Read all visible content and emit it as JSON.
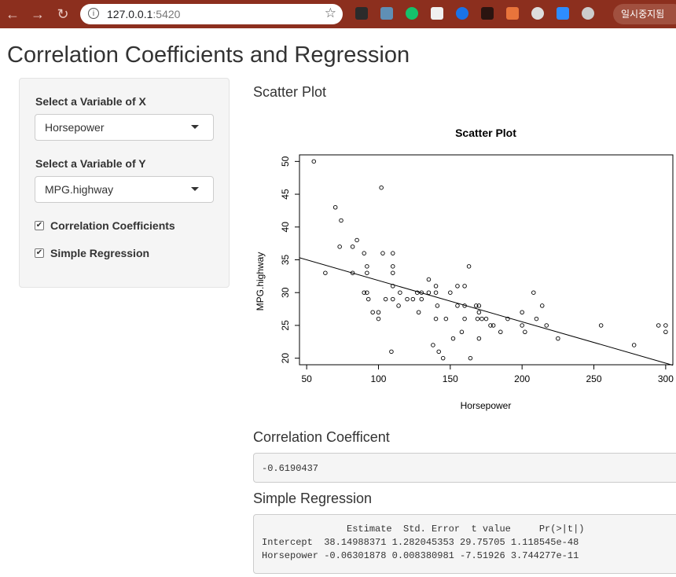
{
  "browser": {
    "url_host": "127.0.0.1",
    "url_port": ":5420",
    "profile_label": "일시중지됨"
  },
  "app": {
    "title": "Correlation Coefficients and Regression"
  },
  "sidebar": {
    "x_label": "Select a Variable of X",
    "x_value": "Horsepower",
    "y_label": "Select a Variable of Y",
    "y_value": "MPG.highway",
    "checkboxes": [
      {
        "label": "Correlation Coefficients",
        "checked": true
      },
      {
        "label": "Simple Regression",
        "checked": true
      }
    ]
  },
  "main": {
    "scatter_heading": "Scatter Plot",
    "corr_heading": "Correlation Coefficent",
    "corr_value": "-0.6190437",
    "reg_heading": "Simple Regression",
    "reg_lines": [
      "               Estimate  Std. Error  t value     Pr(>|t|)",
      "Intercept  38.14988371 1.282045353 29.75705 1.118545e-48",
      "Horsepower -0.06301878 0.008380981 -7.51926 3.744277e-11"
    ]
  },
  "chart_data": {
    "type": "scatter",
    "title": "Scatter Plot",
    "xlabel": "Horsepower",
    "ylabel": "MPG.highway",
    "xlim": [
      45,
      305
    ],
    "ylim": [
      19,
      51
    ],
    "xticks": [
      50,
      100,
      150,
      200,
      250,
      300
    ],
    "yticks": [
      20,
      25,
      30,
      35,
      40,
      45,
      50
    ],
    "grid": false,
    "regression_line": {
      "intercept": 38.14988371,
      "slope": -0.06301878
    },
    "points": [
      [
        55,
        50
      ],
      [
        63,
        33
      ],
      [
        70,
        43
      ],
      [
        73,
        37
      ],
      [
        74,
        41
      ],
      [
        82,
        33
      ],
      [
        82,
        37
      ],
      [
        85,
        38
      ],
      [
        90,
        36
      ],
      [
        90,
        30
      ],
      [
        92,
        34
      ],
      [
        92,
        33
      ],
      [
        92,
        30
      ],
      [
        93,
        29
      ],
      [
        96,
        27
      ],
      [
        100,
        27
      ],
      [
        100,
        26
      ],
      [
        102,
        46
      ],
      [
        103,
        36
      ],
      [
        105,
        29
      ],
      [
        109,
        21
      ],
      [
        110,
        36
      ],
      [
        110,
        34
      ],
      [
        110,
        33
      ],
      [
        110,
        31
      ],
      [
        110,
        29
      ],
      [
        114,
        28
      ],
      [
        115,
        30
      ],
      [
        120,
        29
      ],
      [
        124,
        29
      ],
      [
        127,
        30
      ],
      [
        128,
        27
      ],
      [
        130,
        29
      ],
      [
        130,
        30
      ],
      [
        135,
        30
      ],
      [
        135,
        32
      ],
      [
        138,
        22
      ],
      [
        140,
        26
      ],
      [
        140,
        30
      ],
      [
        140,
        31
      ],
      [
        141,
        28
      ],
      [
        142,
        21
      ],
      [
        145,
        20
      ],
      [
        147,
        26
      ],
      [
        150,
        30
      ],
      [
        152,
        23
      ],
      [
        155,
        28
      ],
      [
        155,
        31
      ],
      [
        158,
        24
      ],
      [
        160,
        26
      ],
      [
        160,
        28
      ],
      [
        160,
        31
      ],
      [
        163,
        34
      ],
      [
        164,
        20
      ],
      [
        168,
        28
      ],
      [
        169,
        26
      ],
      [
        170,
        27
      ],
      [
        170,
        23
      ],
      [
        170,
        28
      ],
      [
        172,
        26
      ],
      [
        175,
        26
      ],
      [
        178,
        25
      ],
      [
        180,
        25
      ],
      [
        185,
        24
      ],
      [
        190,
        26
      ],
      [
        200,
        27
      ],
      [
        200,
        25
      ],
      [
        202,
        24
      ],
      [
        208,
        30
      ],
      [
        210,
        26
      ],
      [
        214,
        28
      ],
      [
        217,
        25
      ],
      [
        225,
        23
      ],
      [
        255,
        25
      ],
      [
        278,
        22
      ],
      [
        295,
        25
      ],
      [
        300,
        25
      ],
      [
        300,
        24
      ]
    ]
  }
}
